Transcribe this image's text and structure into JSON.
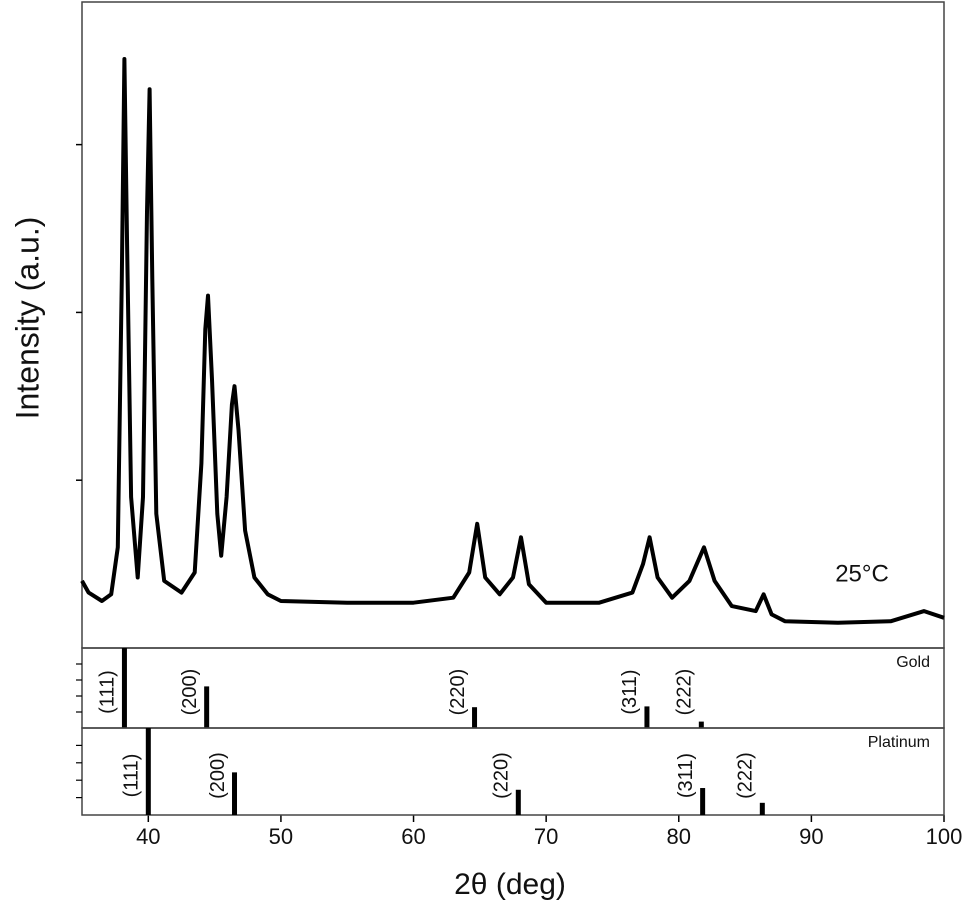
{
  "chart_data": [
    {
      "type": "line",
      "xlabel": "2θ (deg)",
      "ylabel": "Intensity (a.u.)",
      "annotation": "25°C",
      "color": "#000000",
      "xlim": [
        35,
        100
      ],
      "xticks": [
        40,
        50,
        60,
        70,
        80,
        90,
        100
      ],
      "ylim": [
        0,
        3.85
      ],
      "yticks": [
        1,
        2,
        3
      ],
      "x": [
        35,
        35.5,
        36.5,
        37.2,
        37.7,
        38.0,
        38.2,
        38.4,
        38.7,
        39.2,
        39.6,
        39.9,
        40.1,
        40.3,
        40.6,
        41.2,
        42.5,
        43.5,
        44.0,
        44.3,
        44.5,
        44.8,
        45.2,
        45.5,
        45.9,
        46.3,
        46.5,
        46.8,
        47.3,
        48,
        49,
        50,
        55,
        60,
        63,
        64.2,
        64.8,
        65.4,
        66.5,
        67.5,
        68.1,
        68.7,
        70,
        74,
        76.5,
        77.3,
        77.8,
        78.4,
        79.5,
        80.8,
        81.9,
        82.7,
        84,
        85.8,
        86.4,
        87,
        88,
        92,
        96,
        98.5,
        100
      ],
      "values": [
        0.4,
        0.33,
        0.28,
        0.32,
        0.6,
        2.2,
        3.51,
        2.4,
        0.9,
        0.42,
        0.9,
        2.6,
        3.33,
        2.2,
        0.8,
        0.4,
        0.33,
        0.45,
        1.1,
        1.9,
        2.1,
        1.6,
        0.8,
        0.55,
        0.9,
        1.45,
        1.56,
        1.3,
        0.7,
        0.42,
        0.32,
        0.28,
        0.27,
        0.27,
        0.3,
        0.45,
        0.74,
        0.42,
        0.32,
        0.42,
        0.66,
        0.38,
        0.27,
        0.27,
        0.33,
        0.5,
        0.66,
        0.42,
        0.3,
        0.4,
        0.6,
        0.4,
        0.25,
        0.22,
        0.32,
        0.2,
        0.16,
        0.15,
        0.16,
        0.22,
        0.18
      ]
    },
    {
      "type": "stick",
      "title": "Gold",
      "color": "#000000",
      "ylim": [
        0,
        100
      ],
      "yticks": [
        20,
        40,
        60,
        80
      ],
      "x": [
        38.2,
        44.4,
        64.6,
        77.6,
        81.7
      ],
      "values": [
        100,
        52,
        26,
        27,
        8
      ],
      "labels": [
        "(111)",
        "(200)",
        "(220)",
        "(311)",
        "(222)"
      ]
    },
    {
      "type": "stick",
      "title": "Platinum",
      "color": "#000000",
      "ylim": [
        0,
        100
      ],
      "yticks": [
        20,
        40,
        60,
        80
      ],
      "x": [
        40.0,
        46.5,
        67.9,
        81.8,
        86.3
      ],
      "values": [
        100,
        49,
        29,
        31,
        14
      ],
      "labels": [
        "(111)",
        "(200)",
        "(220)",
        "(311)",
        "(222)"
      ]
    }
  ]
}
